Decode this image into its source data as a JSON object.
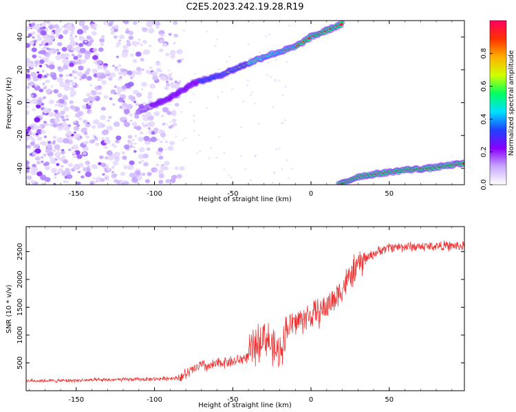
{
  "figure": {
    "title": "C2E5.2023.242.19.28.R19"
  },
  "chart_data": [
    {
      "type": "heatmap",
      "title": "",
      "xlabel": "Height of straight line (km)",
      "ylabel": "Frequency (Hz)",
      "xlim": [
        -182,
        98
      ],
      "ylim": [
        -50,
        50
      ],
      "xticks": [
        -150,
        -100,
        -50,
        0,
        50
      ],
      "yticks": [
        -40,
        -20,
        0,
        20,
        40
      ],
      "colorbar": {
        "label": "Normalized spectral amplitude",
        "range": [
          0,
          1
        ],
        "ticks": [
          0.0,
          0.2,
          0.4,
          0.6,
          0.8
        ],
        "colors": [
          "#ffffff",
          "#c8a8ff",
          "#8800ff",
          "#2040ff",
          "#00e0ff",
          "#00ff60",
          "#d0ff00",
          "#ffb000",
          "#ff3000",
          "#ff0060"
        ]
      },
      "ridges": [
        {
          "name": "upper",
          "x": [
            -110,
            -90,
            -75,
            -60,
            -45,
            -30,
            -20,
            -10,
            0,
            10,
            20
          ],
          "y": [
            -5,
            3,
            12,
            16,
            22,
            28,
            31,
            34,
            40,
            44,
            48
          ]
        },
        {
          "name": "lower",
          "x": [
            18,
            30,
            45,
            60,
            75,
            90,
            98
          ],
          "y": [
            -50,
            -45,
            -43,
            -41,
            -40,
            -38,
            -37
          ]
        }
      ]
    },
    {
      "type": "line",
      "title": "",
      "xlabel": "Height of straight line (km)",
      "ylabel": "SNR (10 * v/v)",
      "xlim": [
        -182,
        98
      ],
      "ylim": [
        0,
        2950
      ],
      "xticks": [
        -150,
        -100,
        -50,
        0,
        50
      ],
      "yticks": [
        500,
        1000,
        1500,
        2000,
        2500
      ],
      "color": "#ee3333",
      "series": [
        {
          "x": [
            -182,
            -160,
            -140,
            -120,
            -100,
            -85,
            -80,
            -75,
            -70,
            -65,
            -60,
            -55,
            -50,
            -45,
            -40,
            -35,
            -30,
            -27,
            -25,
            -22,
            -20,
            -18,
            -15,
            -10,
            -5,
            0,
            5,
            10,
            15,
            20,
            25,
            30,
            35,
            40,
            45,
            50,
            60,
            70,
            80,
            90,
            98
          ],
          "y": [
            180,
            180,
            190,
            200,
            210,
            230,
            290,
            380,
            460,
            430,
            480,
            520,
            520,
            560,
            620,
            820,
            1000,
            900,
            760,
            700,
            640,
            900,
            1150,
            1220,
            1300,
            1350,
            1400,
            1520,
            1650,
            1850,
            2050,
            2250,
            2380,
            2460,
            2530,
            2580,
            2590,
            2590,
            2600,
            2600,
            2600
          ]
        }
      ]
    }
  ]
}
